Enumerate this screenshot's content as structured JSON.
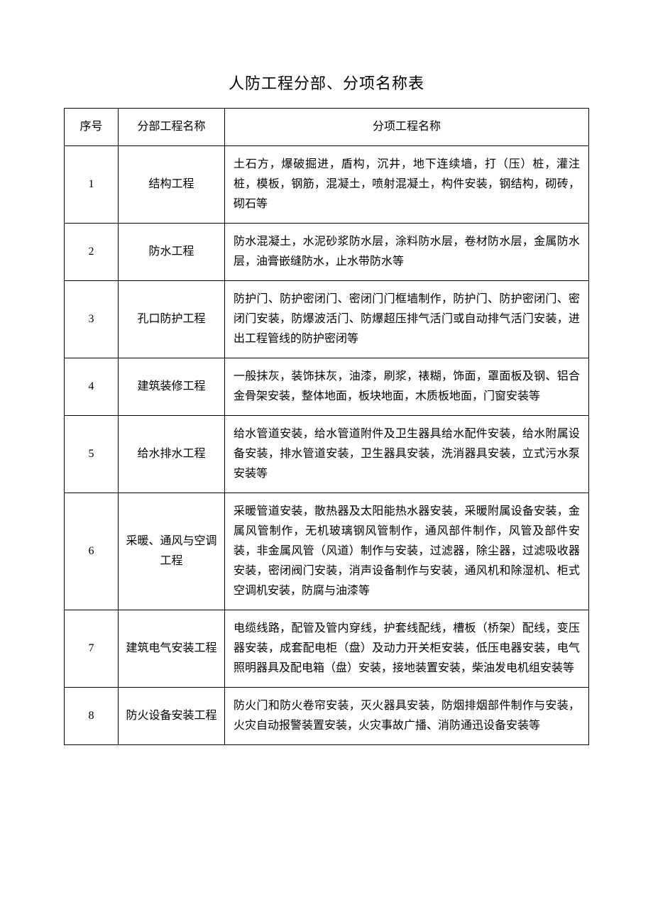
{
  "title": "人防工程分部、分项名称表",
  "table": {
    "headers": {
      "col1": "序号",
      "col2": "分部工程名称",
      "col3": "分项工程名称"
    },
    "rows": [
      {
        "num": "1",
        "section": "结构工程",
        "items": "土石方，爆破掘进，盾构，沉井，地下连续墙，打（压）桩，灌注桩，模板，钢筋，混凝土，喷射混凝土，构件安装，钢结构，砌砖，砌石等"
      },
      {
        "num": "2",
        "section": "防水工程",
        "items": "防水混凝土，水泥砂浆防水层，涂料防水层，卷材防水层，金属防水层，油膏嵌缝防水，止水带防水等"
      },
      {
        "num": "3",
        "section": "孔口防护工程",
        "items": "防护门、防护密闭门、密闭门门框墙制作，防护门、防护密闭门、密闭门安装，防爆波活门、防爆超压排气活门或自动排气活门安装，进出工程管线的防护密闭等"
      },
      {
        "num": "4",
        "section": "建筑装修工程",
        "items": "一般抹灰，装饰抹灰，油漆，刷浆，裱糊，饰面，罩面板及钢、铝合金骨架安装，整体地面，板块地面，木质板地面，门窗安装等"
      },
      {
        "num": "5",
        "section": "给水排水工程",
        "items": "给水管道安装，给水管道附件及卫生器具给水配件安装，给水附属设备安装，排水管道安装，卫生器具安装，洗消器具安装，立式污水泵安装等"
      },
      {
        "num": "6",
        "section": "采暖、通风与空调工程",
        "items": "采暖管道安装，散热器及太阳能热水器安装，采暖附属设备安装，金属风管制作，无机玻璃钢风管制作，通风部件制作，风管及部件安装，非金属风管（风道）制作与安装，过滤器，除尘器，过滤吸收器安装，密闭阀门安装，消声设备制作与安装，通风机和除湿机、柜式空调机安装，防腐与油漆等"
      },
      {
        "num": "7",
        "section": "建筑电气安装工程",
        "items": "电缆线路，配管及管内穿线，护套线配线，槽板（桥架）配线，变压器安装，成套配电柜（盘）及动力开关柜安装，低压电器安装，电气照明器具及配电箱（盘）安装，接地装置安装，柴油发电机组安装等"
      },
      {
        "num": "8",
        "section": "防火设备安装工程",
        "items": "防火门和防火卷帘安装，灭火器具安装，防烟排烟部件制作与安装，火灾自动报警装置安装，火灾事故广播、消防通迅设备安装等"
      }
    ]
  }
}
